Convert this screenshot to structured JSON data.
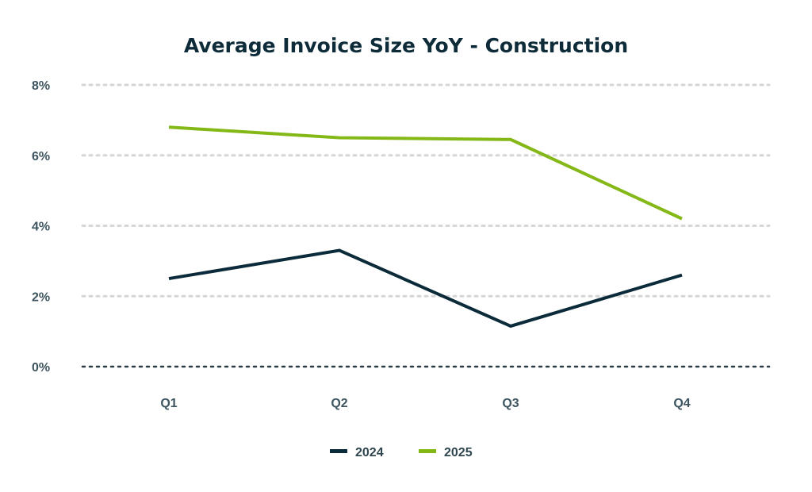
{
  "chart_data": {
    "type": "line",
    "title": "Average Invoice Size YoY - Construction",
    "xlabel": "",
    "ylabel": "",
    "categories": [
      "Q1",
      "Q2",
      "Q3",
      "Q4"
    ],
    "ylim": [
      0,
      8
    ],
    "yticks": [
      0,
      2,
      4,
      6,
      8
    ],
    "ytick_labels": [
      "0%",
      "2%",
      "4%",
      "6%",
      "8%"
    ],
    "grid": true,
    "legend_position": "bottom-center",
    "series": [
      {
        "name": "2024",
        "color": "#0b2b3a",
        "values": [
          2.5,
          3.3,
          1.15,
          2.6
        ]
      },
      {
        "name": "2025",
        "color": "#84b817",
        "values": [
          6.8,
          6.5,
          6.45,
          4.2
        ]
      }
    ]
  }
}
